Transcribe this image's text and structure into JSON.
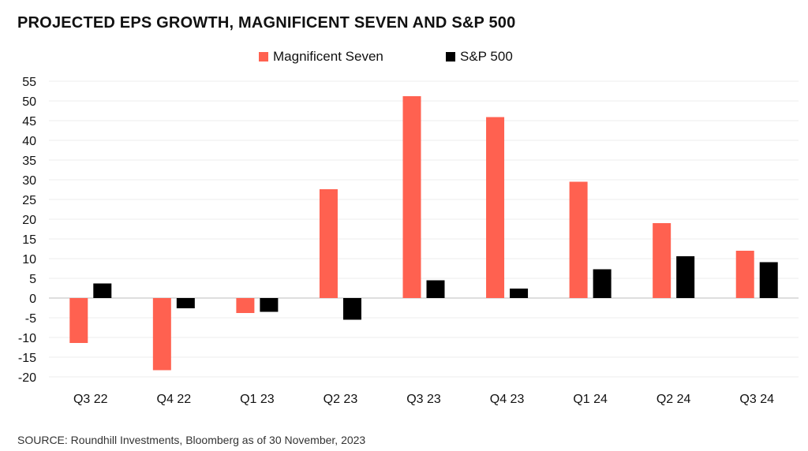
{
  "chart_data": {
    "type": "bar",
    "title": "PROJECTED EPS GROWTH, MAGNIFICENT SEVEN AND S&P 500",
    "categories": [
      "Q3 22",
      "Q4 22",
      "Q1 23",
      "Q2 23",
      "Q3 23",
      "Q4 23",
      "Q1 24",
      "Q2 24",
      "Q3 24"
    ],
    "series": [
      {
        "name": "Magnificent Seven",
        "color": "#ff6150",
        "values": [
          -11.4,
          -18.3,
          -3.8,
          27.6,
          51.2,
          45.9,
          29.5,
          19.0,
          12.0
        ]
      },
      {
        "name": "S&P 500",
        "color": "#000000",
        "values": [
          3.7,
          -2.6,
          -3.5,
          -5.5,
          4.5,
          2.4,
          7.3,
          10.6,
          9.1
        ]
      }
    ],
    "yticks": [
      55,
      50,
      45,
      40,
      35,
      30,
      25,
      20,
      15,
      10,
      5,
      0,
      -5,
      -10,
      -15,
      -20
    ],
    "ylim": [
      -20,
      55
    ],
    "xlabel": "",
    "ylabel": "",
    "grid": true,
    "legend_position": "top-center"
  },
  "source_text": "SOURCE: Roundhill Investments, Bloomberg as of  30 November, 2023"
}
